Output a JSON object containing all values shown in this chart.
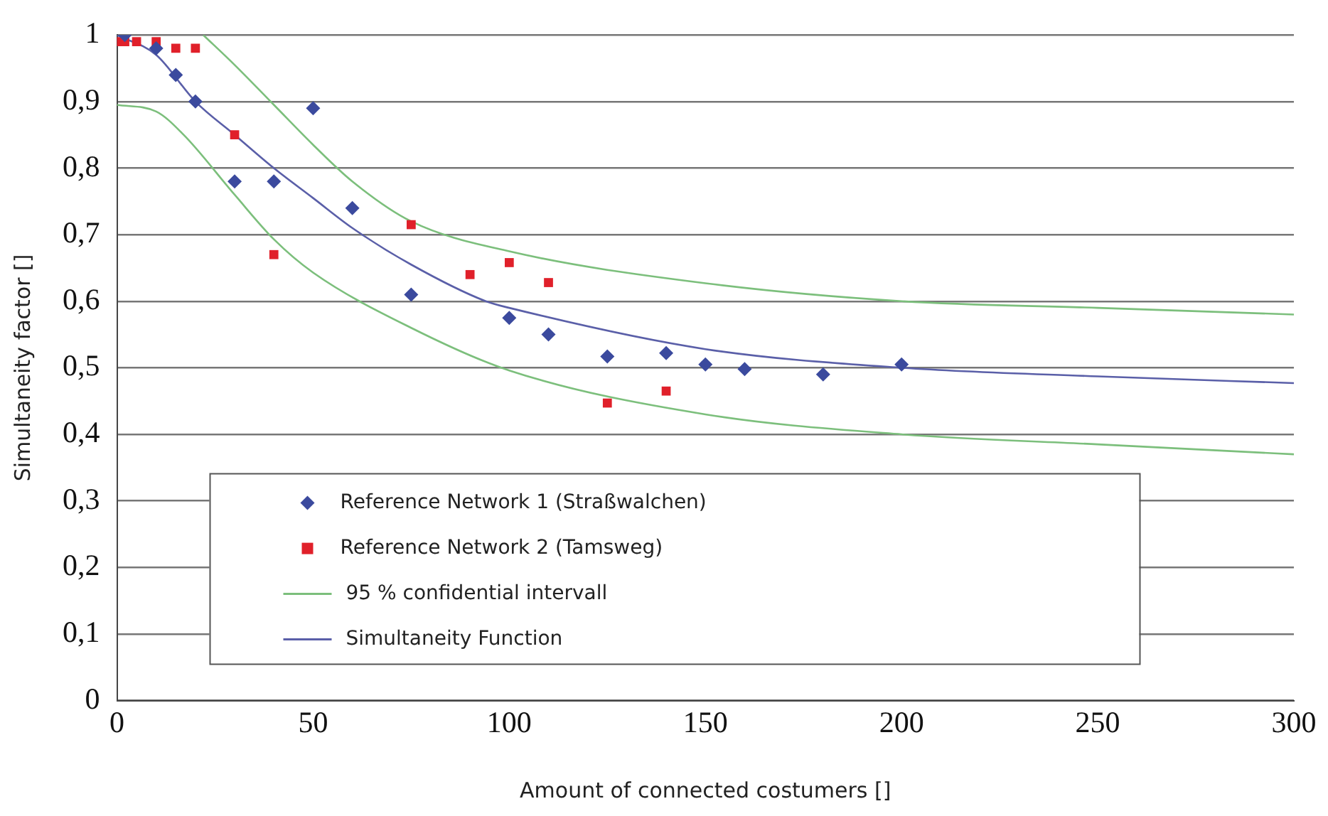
{
  "chart_data": {
    "type": "scatter",
    "xlabel": "Amount of connected costumers []",
    "ylabel": "Simultaneity factor []",
    "xlim": [
      0,
      300
    ],
    "xticks": [
      0,
      50,
      100,
      150,
      200,
      250,
      300
    ],
    "ylim": [
      0,
      1
    ],
    "yticks": [
      0,
      {
        "value": 0.1,
        "label": "0,1"
      },
      {
        "value": 0.2,
        "label": "0,2"
      },
      {
        "value": 0.3,
        "label": "0,3"
      },
      {
        "value": 0.4,
        "label": "0,4"
      },
      {
        "value": 0.5,
        "label": "0,5"
      },
      {
        "value": 0.6,
        "label": "0,6"
      },
      {
        "value": 0.7,
        "label": "0,7"
      },
      {
        "value": 0.8,
        "label": "0,8"
      },
      {
        "value": 0.9,
        "label": "0,9"
      },
      1
    ],
    "grid": "y",
    "legend": "bottom",
    "series": [
      {
        "name": "Reference Network 1 (Straßwalchen)",
        "marker": "diamond",
        "color": "#3b4a9e",
        "x": [
          2,
          10,
          15,
          20,
          30,
          40,
          50,
          60,
          75,
          100,
          110,
          125,
          140,
          150,
          160,
          180,
          200
        ],
        "values": [
          1.0,
          0.98,
          0.94,
          0.9,
          0.78,
          0.78,
          0.89,
          0.74,
          0.61,
          0.575,
          0.55,
          0.517,
          0.522,
          0.505,
          0.498,
          0.49,
          0.505
        ]
      },
      {
        "name": "Reference Network 2 (Tamsweg)",
        "marker": "square",
        "color": "#e0202a",
        "x": [
          0,
          2,
          5,
          10,
          15,
          20,
          30,
          40,
          75,
          90,
          100,
          110,
          125,
          140
        ],
        "values": [
          0.99,
          0.99,
          0.99,
          0.99,
          0.98,
          0.98,
          0.85,
          0.67,
          0.715,
          0.64,
          0.658,
          0.628,
          0.447,
          0.465
        ]
      },
      {
        "name": "95 % confidential intervall",
        "type": "line",
        "marker": "none",
        "line_style": "solid",
        "color": "#7cbf7c",
        "x": [
          22,
          30,
          40,
          50,
          60,
          75,
          100,
          150,
          200,
          250,
          300
        ],
        "values": [
          1.0,
          0.955,
          0.895,
          0.835,
          0.78,
          0.72,
          0.675,
          0.627,
          0.6,
          0.59,
          0.58
        ]
      },
      {
        "type": "line",
        "marker": "none",
        "line_style": "solid",
        "color": "#7cbf7c",
        "x": [
          0,
          10,
          17,
          30,
          40,
          50,
          75,
          100,
          150,
          200,
          250,
          300
        ],
        "values": [
          0.895,
          0.885,
          0.85,
          0.76,
          0.693,
          0.643,
          0.56,
          0.496,
          0.43,
          0.4,
          0.385,
          0.37
        ]
      },
      {
        "name": "Simultaneity Function",
        "type": "line",
        "marker": "none",
        "line_style": "solid",
        "color": "#5a5fa8",
        "x": [
          0,
          10,
          20,
          30,
          40,
          50,
          60,
          75,
          94,
          100,
          150,
          200,
          250,
          300
        ],
        "values": [
          1.0,
          0.97,
          0.9,
          0.85,
          0.8,
          0.755,
          0.71,
          0.655,
          0.6,
          0.59,
          0.528,
          0.5,
          0.487,
          0.477
        ]
      }
    ]
  }
}
